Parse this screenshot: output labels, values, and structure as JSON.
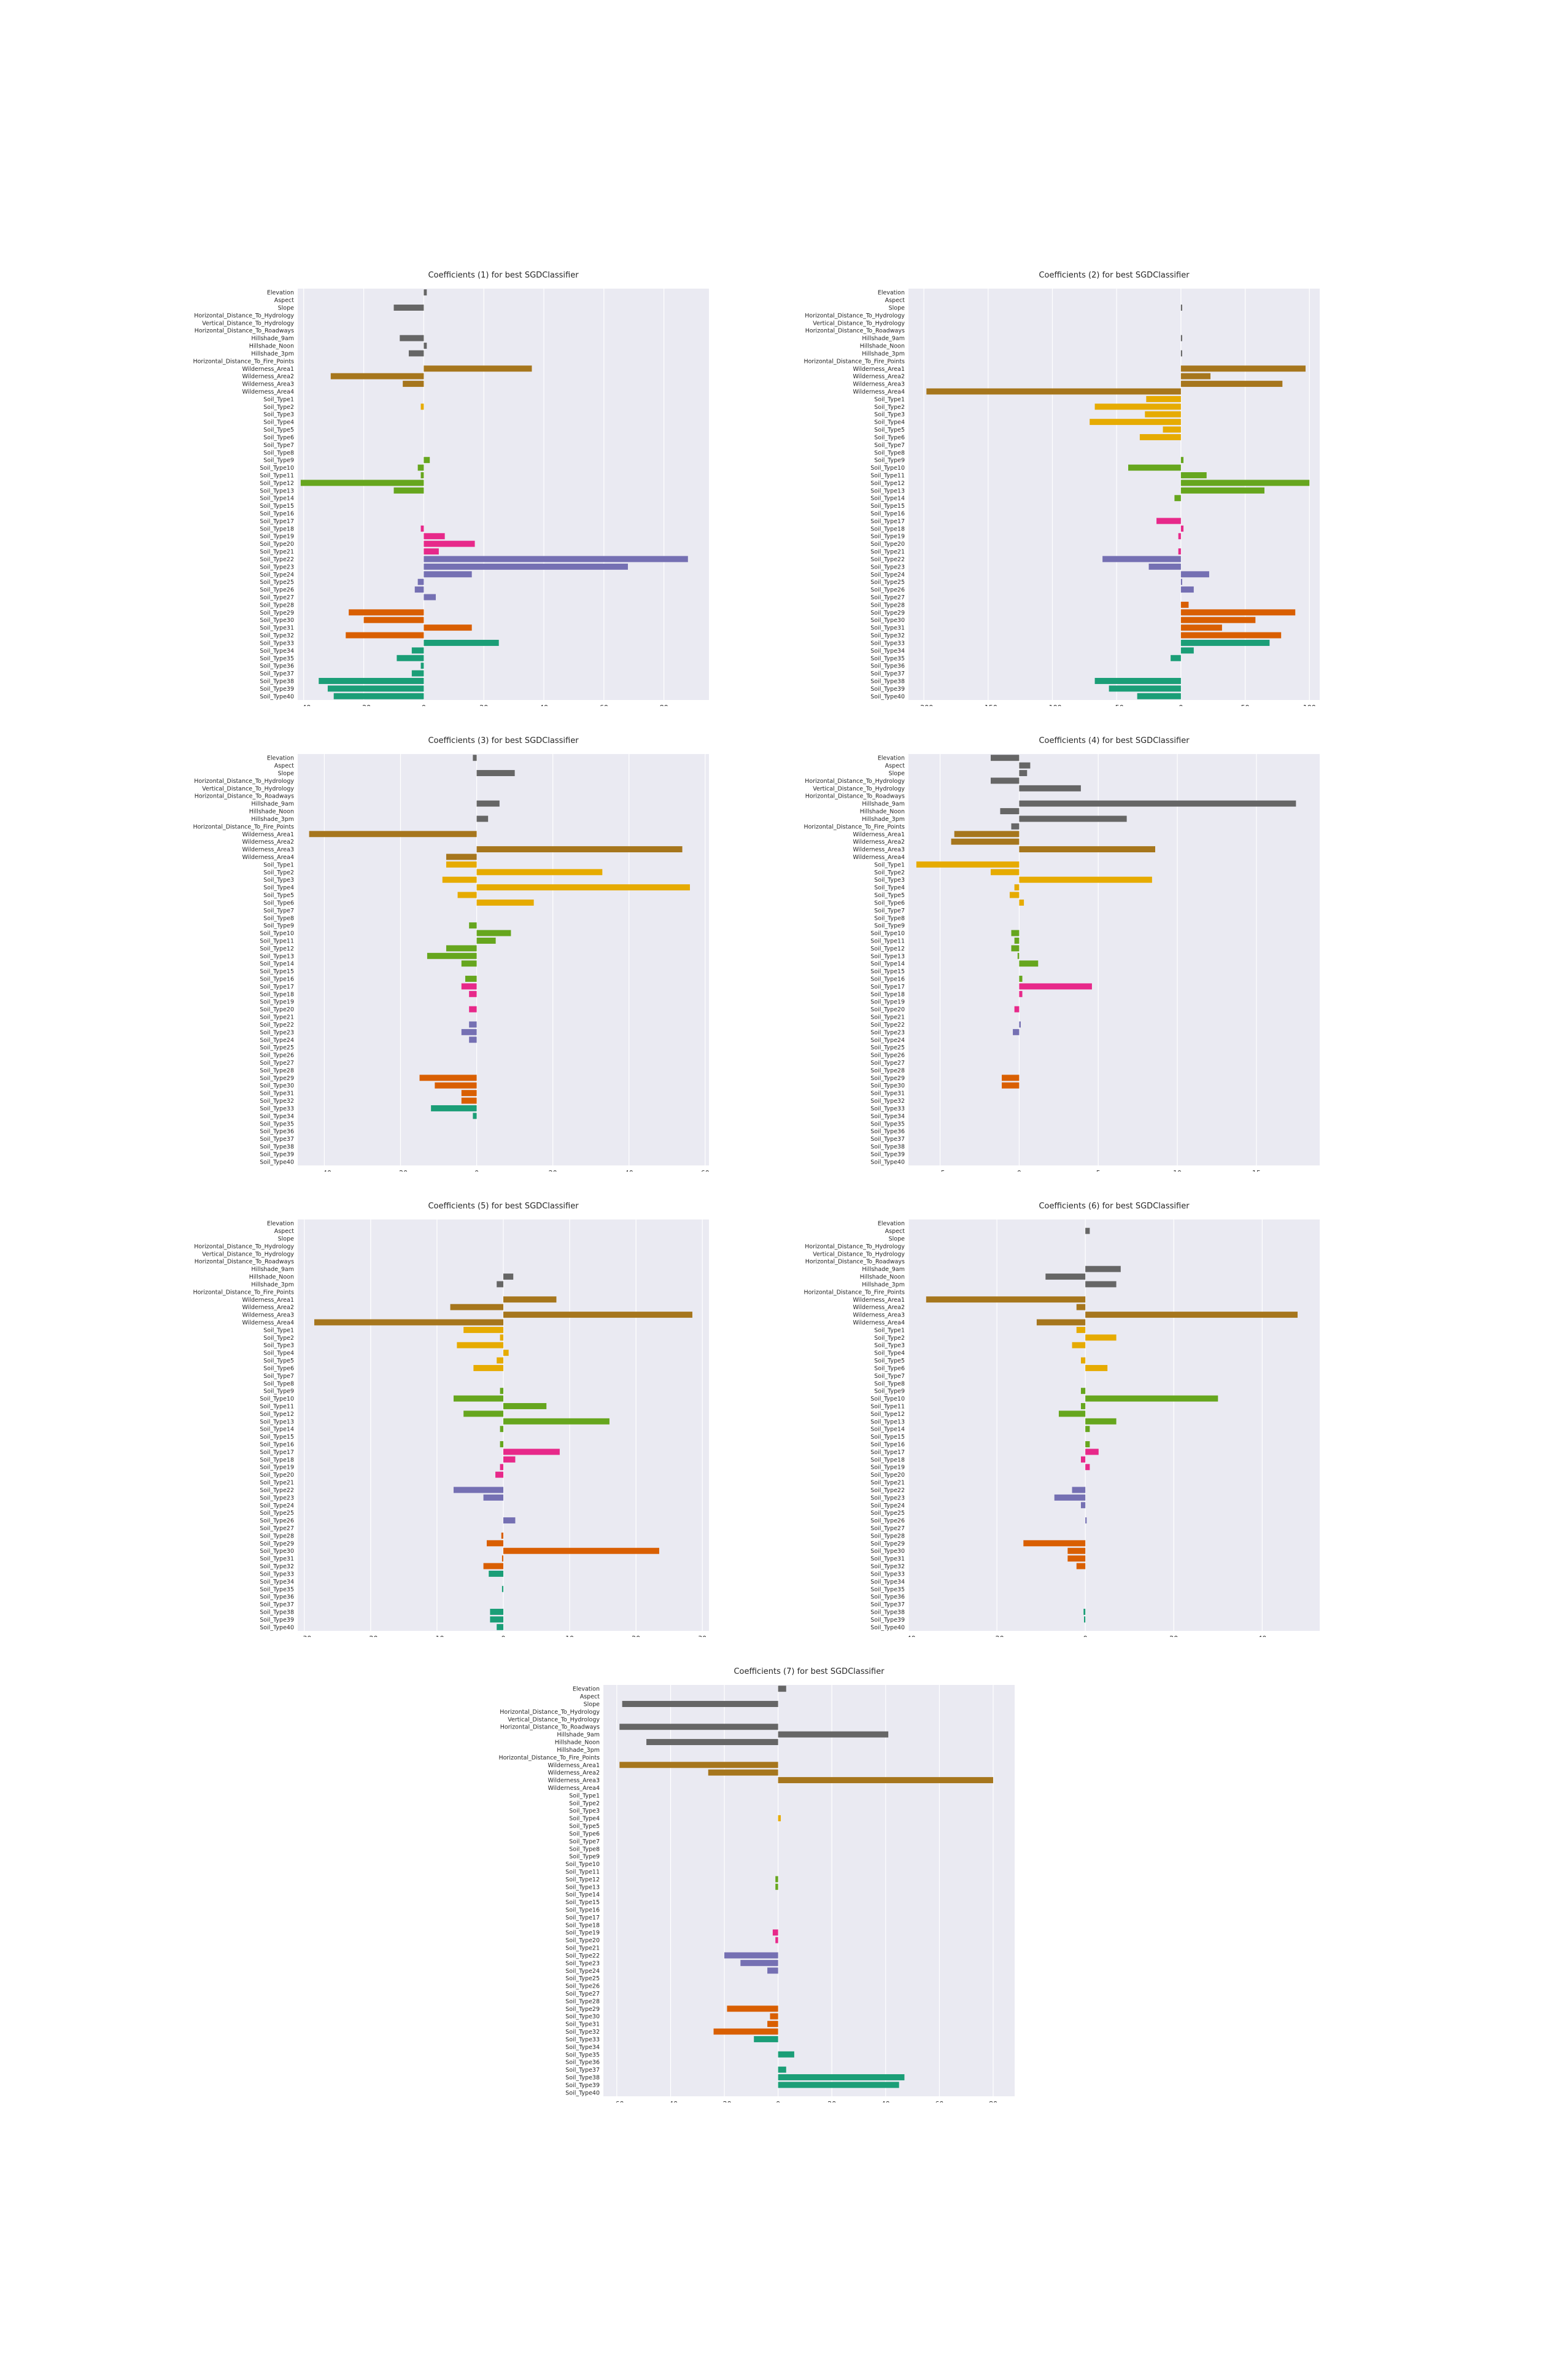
{
  "features": [
    "Elevation",
    "Aspect",
    "Slope",
    "Horizontal_Distance_To_Hydrology",
    "Vertical_Distance_To_Hydrology",
    "Horizontal_Distance_To_Roadways",
    "Hillshade_9am",
    "Hillshade_Noon",
    "Hillshade_3pm",
    "Horizontal_Distance_To_Fire_Points",
    "Wilderness_Area1",
    "Wilderness_Area2",
    "Wilderness_Area3",
    "Wilderness_Area4",
    "Soil_Type1",
    "Soil_Type2",
    "Soil_Type3",
    "Soil_Type4",
    "Soil_Type5",
    "Soil_Type6",
    "Soil_Type7",
    "Soil_Type8",
    "Soil_Type9",
    "Soil_Type10",
    "Soil_Type11",
    "Soil_Type12",
    "Soil_Type13",
    "Soil_Type14",
    "Soil_Type15",
    "Soil_Type16",
    "Soil_Type17",
    "Soil_Type18",
    "Soil_Type19",
    "Soil_Type20",
    "Soil_Type21",
    "Soil_Type22",
    "Soil_Type23",
    "Soil_Type24",
    "Soil_Type25",
    "Soil_Type26",
    "Soil_Type27",
    "Soil_Type28",
    "Soil_Type29",
    "Soil_Type30",
    "Soil_Type31",
    "Soil_Type32",
    "Soil_Type33",
    "Soil_Type34",
    "Soil_Type35",
    "Soil_Type36",
    "Soil_Type37",
    "Soil_Type38",
    "Soil_Type39",
    "Soil_Type40"
  ],
  "group_colors": [
    "#666666",
    "#a6761d",
    "#e6ab02",
    "#66a61e",
    "#e7298a",
    "#7570b3",
    "#d95f02",
    "#1b9e77"
  ],
  "background_color": "#eaeaf2",
  "chart_data": [
    {
      "type": "bar",
      "orientation": "horizontal",
      "title": "Coefficients (1) for best SGDClassifier",
      "xlim": [
        -42,
        95
      ],
      "xticks": [
        -40,
        -20,
        0,
        20,
        40,
        60,
        80
      ],
      "grid": true,
      "values": [
        1,
        0,
        -10,
        0,
        0,
        0,
        -8,
        1,
        -5,
        0,
        36,
        -31,
        -7,
        0,
        0,
        -1,
        0,
        0,
        0,
        0,
        0,
        0,
        2,
        -2,
        -1,
        -41,
        -10,
        0,
        0,
        0,
        0,
        -1,
        7,
        17,
        5,
        88,
        68,
        16,
        -2,
        -3,
        4,
        0,
        -25,
        -20,
        16,
        -26,
        25,
        -4,
        -9,
        -1,
        -4,
        -35,
        -32,
        -30
      ]
    },
    {
      "type": "bar",
      "orientation": "horizontal",
      "title": "Coefficients (2) for best SGDClassifier",
      "xlim": [
        -212,
        108
      ],
      "xticks": [
        -200,
        -150,
        -100,
        -50,
        0,
        50,
        100
      ],
      "grid": true,
      "values": [
        0,
        0,
        1,
        0,
        0,
        0,
        1,
        0,
        1,
        0,
        97,
        23,
        79,
        -198,
        -27,
        -67,
        -28,
        -71,
        -14,
        -32,
        0,
        0,
        2,
        -41,
        20,
        100,
        65,
        -5,
        0,
        0,
        -19,
        2,
        -2,
        0,
        -2,
        -61,
        -25,
        22,
        1,
        10,
        0,
        6,
        89,
        58,
        32,
        78,
        69,
        10,
        -8,
        0,
        0,
        -67,
        -56,
        -34
      ]
    },
    {
      "type": "bar",
      "orientation": "horizontal",
      "title": "Coefficients (3) for best SGDClassifier",
      "xlim": [
        -47,
        61
      ],
      "xticks": [
        -40,
        -20,
        0,
        20,
        40,
        60
      ],
      "grid": true,
      "values": [
        -1,
        0,
        10,
        0,
        0,
        0,
        6,
        0,
        3,
        0,
        -44,
        0,
        54,
        -8,
        -8,
        33,
        -9,
        56,
        -5,
        15,
        0,
        0,
        -2,
        9,
        5,
        -8,
        -13,
        -4,
        0,
        -3,
        -4,
        -2,
        0,
        -2,
        0,
        -2,
        -4,
        -2,
        0,
        0,
        0,
        0,
        -15,
        -11,
        -4,
        -4,
        -12,
        -1,
        0,
        0,
        0,
        0,
        0,
        0
      ]
    },
    {
      "type": "bar",
      "orientation": "horizontal",
      "title": "Coefficients (4) for best SGDClassifier",
      "xlim": [
        -7,
        19
      ],
      "xticks": [
        -5,
        0,
        5,
        10,
        15
      ],
      "grid": true,
      "values": [
        -1.8,
        0.7,
        0.5,
        -1.8,
        3.9,
        0,
        17.5,
        -1.2,
        6.8,
        -0.5,
        -4.1,
        -4.3,
        8.6,
        0,
        -6.5,
        -1.8,
        8.4,
        -0.3,
        -0.6,
        0.3,
        0,
        0,
        0,
        -0.5,
        -0.3,
        -0.5,
        -0.1,
        1.2,
        0,
        0.2,
        4.6,
        0.2,
        0,
        -0.3,
        0,
        0.1,
        -0.4,
        0,
        0,
        0,
        0,
        0,
        -1.1,
        -1.1,
        0,
        0,
        0,
        0,
        0,
        0,
        0,
        0,
        0,
        0
      ]
    },
    {
      "type": "bar",
      "orientation": "horizontal",
      "title": "Coefficients (5) for best SGDClassifier",
      "xlim": [
        -31,
        31
      ],
      "xticks": [
        -30,
        -20,
        -10,
        0,
        10,
        20,
        30
      ],
      "grid": true,
      "values": [
        0,
        0,
        0,
        0,
        0,
        0,
        0,
        1.5,
        -1,
        0,
        8,
        -8,
        28.5,
        -28.5,
        -6,
        -0.5,
        -7,
        0.8,
        -1,
        -4.5,
        0,
        0,
        -0.5,
        -7.5,
        6.5,
        -6,
        16,
        -0.5,
        0,
        -0.5,
        8.5,
        1.8,
        -0.5,
        -1.2,
        0,
        -7.5,
        -3,
        0,
        0,
        1.8,
        0,
        -0.3,
        -2.5,
        23.5,
        -0.2,
        -3,
        -2.2,
        0,
        -0.2,
        0,
        0,
        -2,
        -2,
        -1
      ]
    },
    {
      "type": "bar",
      "orientation": "horizontal",
      "title": "Coefficients (6) for best SGDClassifier",
      "xlim": [
        -40,
        53
      ],
      "xticks": [
        -40,
        -20,
        0,
        20,
        40
      ],
      "grid": true,
      "values": [
        0,
        1,
        0,
        0,
        0,
        0,
        8,
        -9,
        7,
        0,
        -36,
        -2,
        48,
        -11,
        -2,
        7,
        -3,
        0,
        -1,
        5,
        0,
        0,
        -1,
        30,
        -1,
        -6,
        7,
        1,
        0,
        1,
        3,
        -1,
        1,
        0,
        0,
        -3,
        -7,
        -1,
        0,
        0.3,
        0,
        0,
        -14,
        -4,
        -4,
        -2,
        0,
        0,
        0,
        0,
        0,
        -0.4,
        -0.3,
        0
      ]
    },
    {
      "type": "bar",
      "orientation": "horizontal",
      "title": "Coefficients (7) for best SGDClassifier",
      "xlim": [
        -65,
        88
      ],
      "xticks": [
        -60,
        -40,
        -20,
        0,
        20,
        40,
        60,
        80
      ],
      "grid": true,
      "values": [
        3,
        0,
        -58,
        0,
        0,
        -59,
        41,
        -49,
        0,
        0,
        -59,
        -26,
        80,
        0,
        0,
        0,
        0,
        1,
        0,
        0,
        0,
        0,
        0,
        0,
        0,
        -1,
        -1,
        0,
        0,
        0,
        0,
        0,
        -2,
        -1,
        0,
        -20,
        -14,
        -4,
        0,
        0,
        0,
        0,
        -19,
        -3,
        -4,
        -24,
        -9,
        0,
        6,
        0,
        3,
        47,
        45,
        0
      ]
    }
  ]
}
